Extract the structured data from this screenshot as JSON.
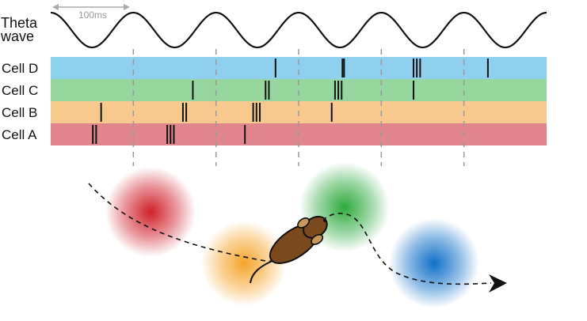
{
  "scale_bar": {
    "label": "100ms"
  },
  "theta": {
    "label_line1": "Theta",
    "label_line2": "wave",
    "cycles": 6
  },
  "cells": [
    {
      "name": "Cell D",
      "color": "#8fd0ee",
      "spike_times_ms": [
        272,
        353,
        355,
        439,
        443,
        447,
        529
      ]
    },
    {
      "name": "Cell C",
      "color": "#98d6a0",
      "spike_times_ms": [
        172,
        260,
        264,
        344,
        348,
        352,
        439
      ]
    },
    {
      "name": "Cell B",
      "color": "#f8c98e",
      "spike_times_ms": [
        61,
        160,
        164,
        245,
        249,
        253,
        340
      ]
    },
    {
      "name": "Cell A",
      "color": "#e0868c",
      "spike_times_ms": [
        51,
        55,
        141,
        145,
        149,
        235
      ]
    }
  ],
  "place_fields": [
    {
      "name": "Cell A",
      "color": "#d0202a"
    },
    {
      "name": "Cell B",
      "color": "#f5a42a"
    },
    {
      "name": "Cell C",
      "color": "#2eaa3e"
    },
    {
      "name": "Cell D",
      "color": "#1070c8"
    }
  ],
  "cycle_markers_ms": [
    100,
    200,
    300,
    400,
    500
  ],
  "trajectory": {
    "style": "dashed",
    "arrow": "end"
  },
  "rat": {
    "body_color": "#7a4a1e",
    "ear_color": "#c9975c",
    "outline_color": "#111111"
  }
}
